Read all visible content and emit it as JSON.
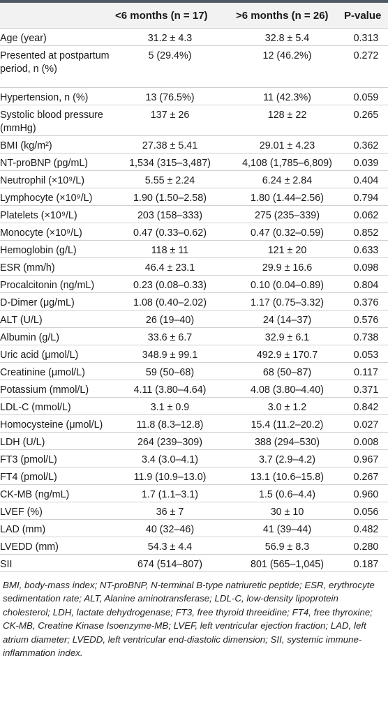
{
  "header": {
    "col1": "<6 months (n = 17)",
    "col2": ">6 months (n = 26)",
    "col3": "P-value"
  },
  "rows": [
    {
      "label": "Age (year)",
      "a": "31.2 ± 4.3",
      "b": "32.8 ± 5.4",
      "p": "0.313"
    },
    {
      "label": "Presented at postpartum period, n (%)",
      "a": "5 (29.4%)",
      "b": "12 (46.2%)",
      "p": "0.272"
    },
    {
      "label": "Hypertension, n (%)",
      "a": "13 (76.5%)",
      "b": "11 (42.3%)",
      "p": "0.059"
    },
    {
      "label": "Systolic blood pressure (mmHg)",
      "a": "137 ± 26",
      "b": "128 ± 22",
      "p": "0.265"
    },
    {
      "label": "BMI (kg/m²)",
      "a": "27.38 ± 5.41",
      "b": "29.01 ± 4.23",
      "p": "0.362"
    },
    {
      "label": "NT-proBNP (pg/mL)",
      "a": "1,534 (315–3,487)",
      "b": "4,108 (1,785–6,809)",
      "p": "0.039"
    },
    {
      "label": "Neutrophil (×10⁹/L)",
      "a": "5.55 ± 2.24",
      "b": "6.24 ± 2.84",
      "p": "0.404"
    },
    {
      "label": "Lymphocyte (×10⁹/L)",
      "a": "1.90 (1.50–2.58)",
      "b": "1.80 (1.44–2.56)",
      "p": "0.794"
    },
    {
      "label": "Platelets (×10⁹/L)",
      "a": "203 (158–333)",
      "b": "275 (235–339)",
      "p": "0.062"
    },
    {
      "label": "Monocyte (×10⁹/L)",
      "a": "0.47 (0.33–0.62)",
      "b": "0.47 (0.32–0.59)",
      "p": "0.852"
    },
    {
      "label": "Hemoglobin (g/L)",
      "a": "118 ± 11",
      "b": "121 ± 20",
      "p": "0.633"
    },
    {
      "label": "ESR (mm/h)",
      "a": "46.4 ± 23.1",
      "b": "29.9 ± 16.6",
      "p": "0.098"
    },
    {
      "label": "Procalcitonin (ng/mL)",
      "a": "0.23 (0.08–0.33)",
      "b": "0.10 (0.04–0.89)",
      "p": "0.804"
    },
    {
      "label": "D-Dimer (μg/mL)",
      "a": "1.08 (0.40–2.02)",
      "b": "1.17 (0.75–3.32)",
      "p": "0.376"
    },
    {
      "label": "ALT (U/L)",
      "a": "26 (19–40)",
      "b": "24 (14–37)",
      "p": "0.576"
    },
    {
      "label": "Albumin (g/L)",
      "a": "33.6 ± 6.7",
      "b": "32.9 ± 6.1",
      "p": "0.738"
    },
    {
      "label": "Uric acid (μmol/L)",
      "a": "348.9 ± 99.1",
      "b": "492.9 ± 170.7",
      "p": "0.053"
    },
    {
      "label": "Creatinine (μmol/L)",
      "a": "59 (50–68)",
      "b": "68 (50–87)",
      "p": "0.117"
    },
    {
      "label": "Potassium (mmol/L)",
      "a": "4.11 (3.80–4.64)",
      "b": "4.08 (3.80–4.40)",
      "p": "0.371"
    },
    {
      "label": "LDL-C (mmol/L)",
      "a": "3.1 ± 0.9",
      "b": "3.0 ± 1.2",
      "p": "0.842"
    },
    {
      "label": "Homocysteine (μmol/L)",
      "a": "11.8 (8.3–12.8)",
      "b": "15.4 (11.2–20.2)",
      "p": "0.027"
    },
    {
      "label": "LDH (U/L)",
      "a": "264 (239–309)",
      "b": "388 (294–530)",
      "p": "0.008"
    },
    {
      "label": "FT3 (pmol/L)",
      "a": "3.4 (3.0–4.1)",
      "b": "3.7 (2.9–4.2)",
      "p": "0.967"
    },
    {
      "label": "FT4 (pmol/L)",
      "a": "11.9 (10.9–13.0)",
      "b": "13.1 (10.6–15.8)",
      "p": "0.267"
    },
    {
      "label": "CK-MB (ng/mL)",
      "a": "1.7 (1.1–3.1)",
      "b": "1.5 (0.6–4.4)",
      "p": "0.960"
    },
    {
      "label": "LVEF (%)",
      "a": "36 ± 7",
      "b": "30 ± 10",
      "p": "0.056"
    },
    {
      "label": "LAD (mm)",
      "a": "40 (32–46)",
      "b": "41 (39–44)",
      "p": "0.482"
    },
    {
      "label": "LVEDD (mm)",
      "a": "54.3 ± 4.4",
      "b": "56.9 ± 8.3",
      "p": "0.280"
    },
    {
      "label": "SII",
      "a": "674 (514–807)",
      "b": "801 (565–1,045)",
      "p": "0.187"
    }
  ],
  "footnote": "BMI, body-mass index; NT-proBNP, N-terminal B-type natriuretic peptide; ESR, erythrocyte sedimentation rate; ALT, Alanine aminotransferase; LDL-C, low-density lipoprotein cholesterol; LDH, lactate dehydrogenase; FT3, free thyroid threeidine; FT4, free thyroxine; CK-MB, Creatine Kinase Isoenzyme-MB; LVEF, left ventricular ejection fraction; LAD, left atrium diameter; LVEDD, left ventricular end-diastolic dimension; SII, systemic immune-inflammation index."
}
